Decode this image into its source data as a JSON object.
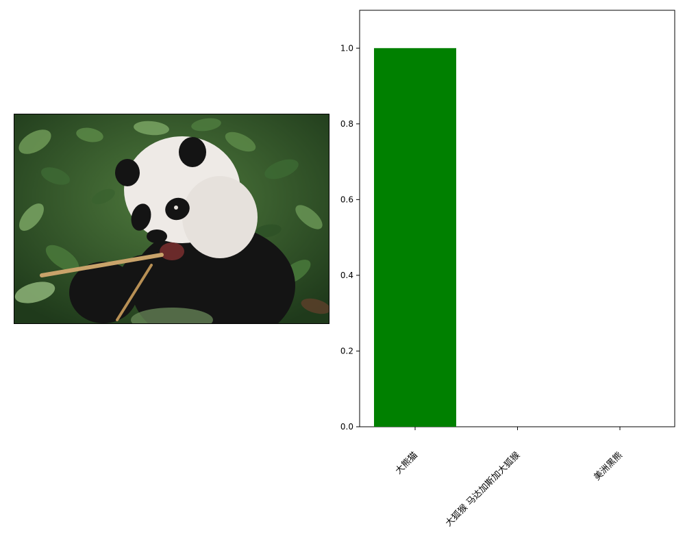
{
  "photo": {
    "subject": "giant panda eating bamboo among green leaves"
  },
  "colors": {
    "bar": "#008000",
    "axis": "#000000",
    "panda_white": "#eeeae6",
    "panda_black": "#141414",
    "foliage_dark": "#2c4a25",
    "foliage_light": "#5e8a4a"
  },
  "chart_data": {
    "type": "bar",
    "categories": [
      "大熊猫",
      "大狐猴 马达加斯加大狐猴",
      "美洲黑熊"
    ],
    "values": [
      1.0,
      0.0,
      0.0
    ],
    "title": "",
    "xlabel": "",
    "ylabel": "",
    "ylim": [
      0,
      1.1
    ],
    "yticks": [
      0.0,
      0.2,
      0.4,
      0.6,
      0.8,
      1.0
    ],
    "ytick_labels": [
      "0.0",
      "0.2",
      "0.4",
      "0.6",
      "0.8",
      "1.0"
    ],
    "grid": false,
    "legend": "none",
    "x_label_rotation_deg": 45
  }
}
